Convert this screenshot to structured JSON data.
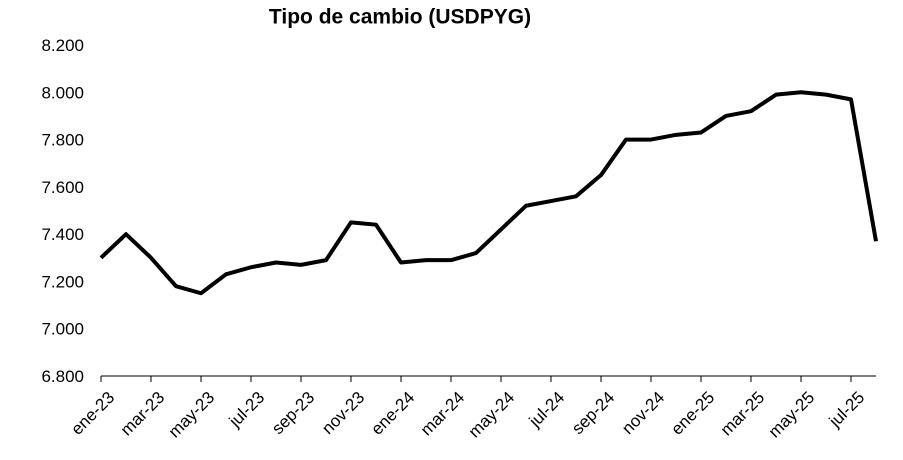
{
  "chart_data": {
    "type": "line",
    "title": "Tipo de cambio (USDPYG)",
    "categories": [
      "ene-23",
      null,
      "mar-23",
      null,
      "may-23",
      null,
      "jul-23",
      null,
      "sep-23",
      null,
      "nov-23",
      null,
      "ene-24",
      null,
      "mar-24",
      null,
      "may-24",
      null,
      "jul-24",
      null,
      "sep-24",
      null,
      "nov-24",
      null,
      "ene-25",
      null,
      "mar-25",
      null,
      "may-25",
      null,
      "jul-25",
      null
    ],
    "series": [
      {
        "name": "USDPYG",
        "color": "#000000",
        "values": [
          7300,
          7400,
          7300,
          7180,
          7150,
          7230,
          7260,
          7280,
          7270,
          7290,
          7450,
          7440,
          7280,
          7290,
          7290,
          7320,
          7420,
          7520,
          7540,
          7560,
          7650,
          7800,
          7800,
          7820,
          7830,
          7900,
          7920,
          7990,
          8000,
          7990,
          7970,
          7370
        ]
      }
    ],
    "ylim": [
      6800,
      8200
    ],
    "yticks": [
      {
        "value": 6800,
        "label": "6.800"
      },
      {
        "value": 7000,
        "label": "7.000"
      },
      {
        "value": 7200,
        "label": "7.200"
      },
      {
        "value": 7400,
        "label": "7.400"
      },
      {
        "value": 7600,
        "label": "7.600"
      },
      {
        "value": 7800,
        "label": "7.800"
      },
      {
        "value": 8000,
        "label": "8.000"
      },
      {
        "value": 8200,
        "label": "8.200"
      }
    ],
    "grid": false
  }
}
